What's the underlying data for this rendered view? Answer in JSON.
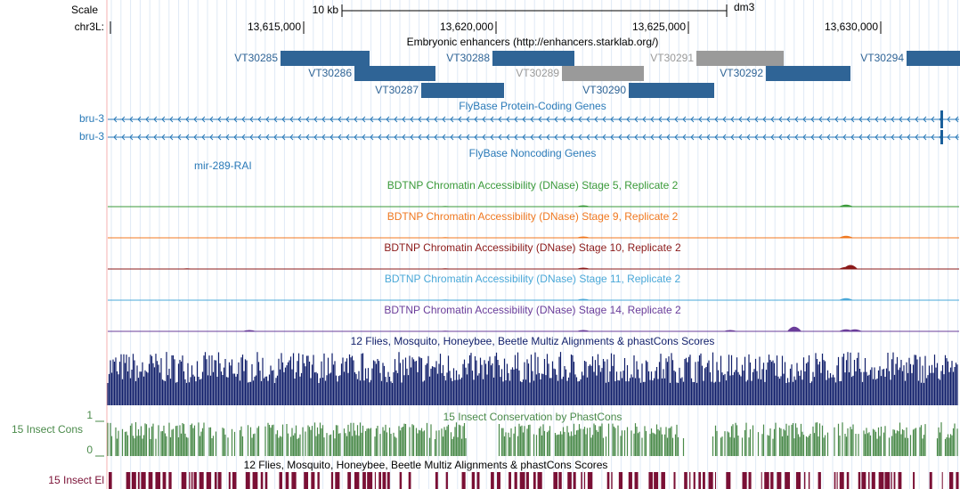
{
  "header": {
    "scale_label": "Scale",
    "chrom_label": "chr3L:",
    "scale_bar": "10 kb",
    "assembly": "dm3",
    "ticks": [
      "13,615,000",
      "13,620,000",
      "13,625,000",
      "13,630,000"
    ]
  },
  "enhancers": {
    "title": "Embryonic enhancers (http://enhancers.starklab.org/)",
    "items": [
      "VT30285",
      "VT30286",
      "VT30287",
      "VT30288",
      "VT30289",
      "VT30290",
      "VT30291",
      "VT30292",
      "VT30294"
    ]
  },
  "genes": {
    "title": "FlyBase Protein-Coding Genes",
    "items": [
      "bru-3",
      "bru-3"
    ]
  },
  "noncoding": {
    "title": "FlyBase Noncoding Genes",
    "items": [
      "mir-289-RAI"
    ]
  },
  "dnase": [
    "BDTNP Chromatin Accessibility (DNase) Stage 5, Replicate 2",
    "BDTNP Chromatin Accessibility (DNase) Stage 9, Replicate 2",
    "BDTNP Chromatin Accessibility (DNase) Stage 10, Replicate 2",
    "BDTNP Chromatin Accessibility (DNase) Stage 11, Replicate 2",
    "BDTNP Chromatin Accessibility (DNase) Stage 14, Replicate 2"
  ],
  "multiz": {
    "title": "12 Flies, Mosquito, Honeybee, Beetle Multiz Alignments & phastCons Scores"
  },
  "phastcons": {
    "title": "15 Insect Conservation by PhastCons",
    "label": "15 Insect Cons",
    "max": 1,
    "min": 0
  },
  "elements": {
    "title": "12 Flies, Mosquito, Honeybee, Beetle Multiz Alignments & phastCons Scores",
    "label": "15 Insect El"
  }
}
